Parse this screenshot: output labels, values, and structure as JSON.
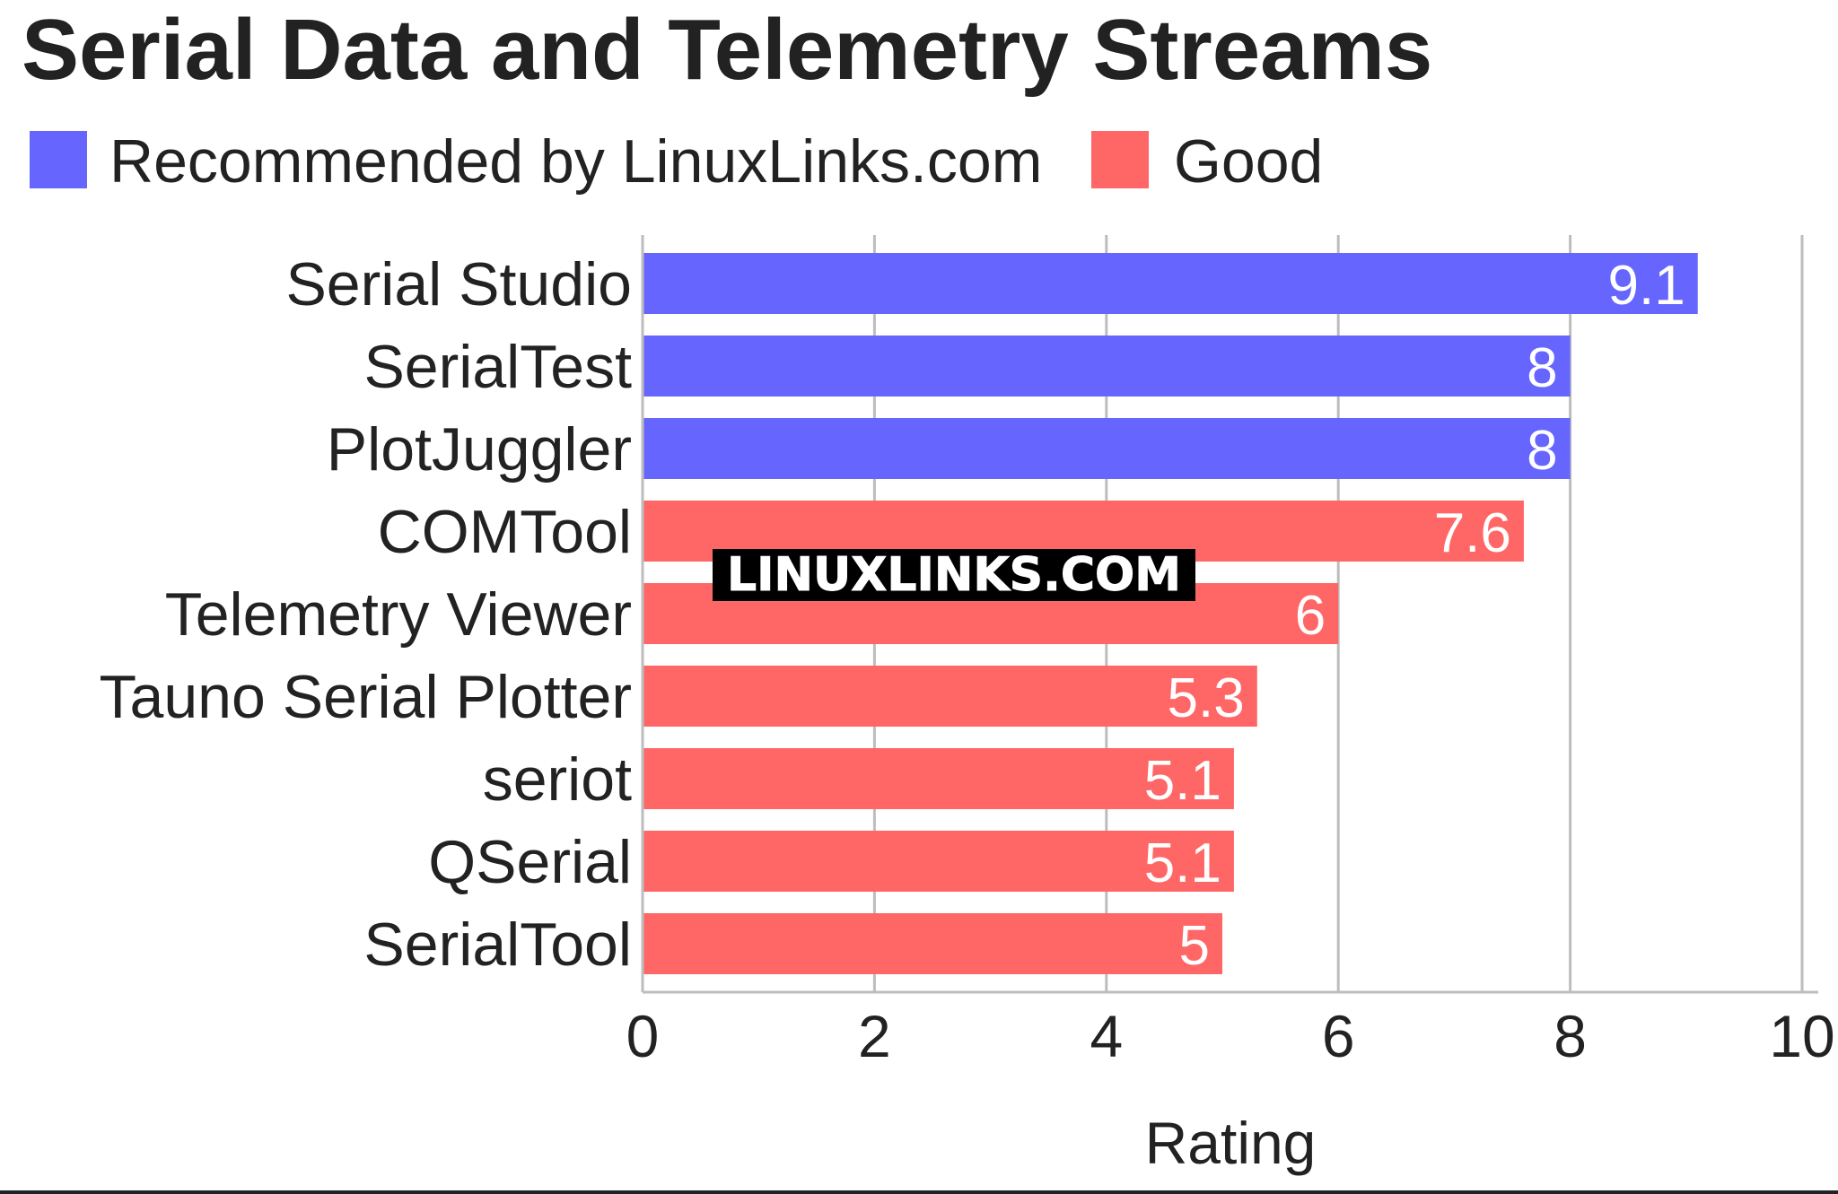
{
  "chart_data": {
    "type": "bar",
    "orientation": "horizontal",
    "title": "Serial Data and Telemetry Streams",
    "xlabel": "Rating",
    "ylabel": "",
    "xlim": [
      0,
      10
    ],
    "xticks": [
      "0",
      "2",
      "4",
      "6",
      "8",
      "10"
    ],
    "grid": "vertical",
    "legend_position": "top-left",
    "legend": [
      {
        "name": "Recommended by LinuxLinks.com",
        "color": "#6666ff"
      },
      {
        "name": "Good",
        "color": "#ff6666"
      }
    ],
    "categories": [
      "Serial Studio",
      "SerialTest",
      "PlotJuggler",
      "COMTool",
      "Telemetry Viewer",
      "Tauno Serial Plotter",
      "seriot",
      "QSerial",
      "SerialTool"
    ],
    "values": [
      9.1,
      8,
      8,
      7.6,
      6,
      5.3,
      5.1,
      5.1,
      5
    ],
    "data_labels": [
      "9.1",
      "8",
      "8",
      "7.6",
      "6",
      "5.3",
      "5.1",
      "5.1",
      "5"
    ],
    "groups": [
      "Recommended by LinuxLinks.com",
      "Recommended by LinuxLinks.com",
      "Recommended by LinuxLinks.com",
      "Good",
      "Good",
      "Good",
      "Good",
      "Good",
      "Good"
    ]
  },
  "watermark": "LINUXLINKS.COM",
  "colors": {
    "recommended": "#6666ff",
    "good": "#ff6666",
    "grid": "#bdbdbd",
    "text": "#222222"
  }
}
